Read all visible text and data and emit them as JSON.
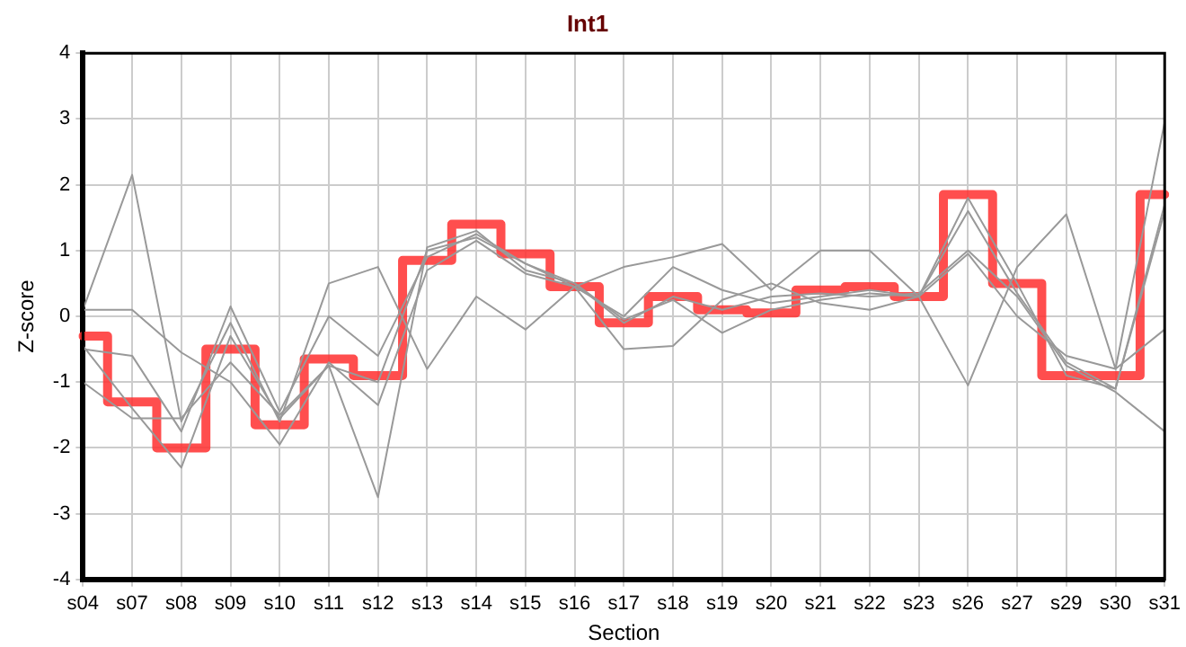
{
  "chart_data": {
    "type": "line",
    "title": "Int1",
    "xlabel": "Section",
    "ylabel": "Z-score",
    "categories": [
      "s04",
      "s07",
      "s08",
      "s09",
      "s10",
      "s11",
      "s12",
      "s13",
      "s14",
      "s15",
      "s16",
      "s17",
      "s18",
      "s19",
      "s20",
      "s21",
      "s22",
      "s23",
      "s26",
      "s27",
      "s29",
      "s30",
      "s31"
    ],
    "ylim": [
      -4,
      4
    ],
    "yticks": [
      -4,
      -3,
      -2,
      -1,
      0,
      1,
      2,
      3,
      4
    ],
    "grid": true,
    "legend": false,
    "marker": "none",
    "line_style": "solid",
    "series": [
      {
        "color": "#999999",
        "values": [
          0.1,
          2.15,
          -1.6,
          -0.1,
          -1.6,
          0.5,
          0.75,
          -0.8,
          0.3,
          -0.2,
          0.45,
          0.75,
          0.9,
          1.1,
          0.4,
          1.0,
          1.0,
          0.3,
          -1.05,
          0.75,
          1.55,
          -0.8,
          2.95
        ]
      },
      {
        "color": "#999999",
        "values": [
          0.1,
          0.1,
          -0.55,
          -1.0,
          -1.95,
          -0.7,
          -1.35,
          0.7,
          1.15,
          0.65,
          0.45,
          -0.5,
          -0.45,
          0.25,
          0.5,
          0.2,
          0.1,
          0.3,
          0.95,
          0.0,
          -0.6,
          -0.8,
          -0.2
        ]
      },
      {
        "color": "#999999",
        "values": [
          -0.5,
          -0.6,
          -1.75,
          0.15,
          -1.45,
          0.0,
          -0.6,
          0.9,
          1.25,
          0.8,
          0.45,
          0.0,
          0.75,
          0.4,
          0.2,
          0.3,
          0.4,
          0.3,
          1.6,
          0.35,
          -0.7,
          -1.1,
          1.7
        ]
      },
      {
        "color": "#999999",
        "values": [
          -1.0,
          -1.55,
          -1.55,
          -0.7,
          -1.5,
          -0.75,
          -2.75,
          1.05,
          1.3,
          0.7,
          0.5,
          -0.05,
          0.25,
          -0.25,
          0.1,
          0.25,
          0.35,
          0.3,
          1.8,
          0.5,
          -0.9,
          -1.1,
          1.6
        ]
      },
      {
        "color": "#999999",
        "values": [
          -0.45,
          -1.4,
          -2.3,
          -0.3,
          -1.55,
          -0.75,
          -1.0,
          1.0,
          1.2,
          0.8,
          0.5,
          -0.1,
          0.3,
          0.1,
          0.3,
          0.35,
          0.3,
          0.35,
          1.0,
          0.3,
          -0.75,
          -1.15,
          -1.75
        ]
      },
      {
        "type": "step",
        "color": "#ff3333",
        "values": [
          -0.3,
          -1.3,
          -2.0,
          -0.5,
          -1.65,
          -0.65,
          -0.9,
          0.85,
          1.4,
          0.95,
          0.45,
          -0.1,
          0.3,
          0.1,
          0.05,
          0.4,
          0.45,
          0.3,
          1.85,
          0.5,
          -0.9,
          -0.9,
          1.85
        ]
      }
    ]
  }
}
